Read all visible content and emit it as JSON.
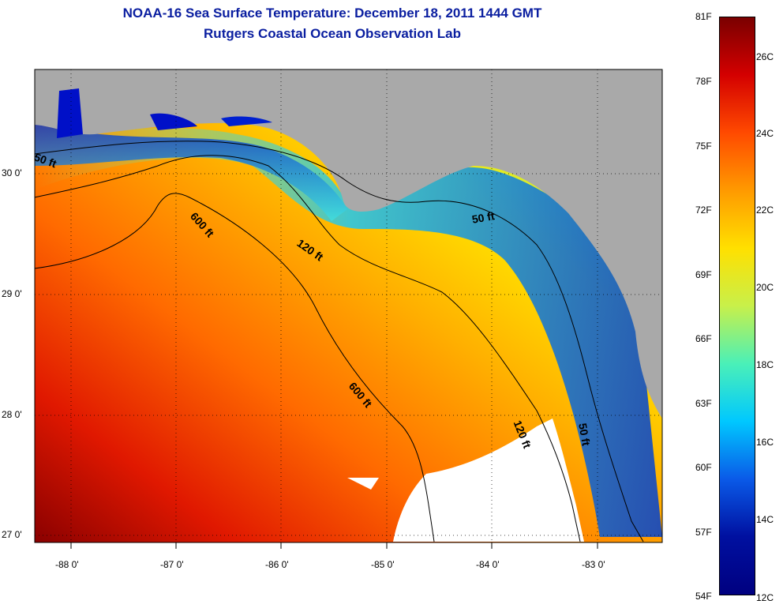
{
  "title": "NOAA-16 Sea Surface Temperature:  December 18, 2011 1444 GMT",
  "subtitle": "Rutgers Coastal Ocean Observation Lab",
  "y_labels": [
    "30 0'",
    "29 0'",
    "28 0'",
    "27 0'"
  ],
  "x_labels": [
    "-88 0'",
    "-87 0'",
    "-86 0'",
    "-85 0'",
    "-84 0'",
    "-83 0'"
  ],
  "colorbar": {
    "fahrenheit": [
      "81F",
      "78F",
      "75F",
      "72F",
      "69F",
      "66F",
      "63F",
      "60F",
      "57F",
      "54F"
    ],
    "celsius": [
      "26C",
      "24C",
      "22C",
      "20C",
      "18C",
      "16C",
      "14C",
      "12C"
    ],
    "colors": [
      "#7a0000",
      "#d40000",
      "#ff4a00",
      "#ff9a00",
      "#ffe000",
      "#c8f04a",
      "#4af0b8",
      "#00c8ff",
      "#0a5ae8",
      "#0010a0",
      "#000080"
    ]
  },
  "contours": [
    "50 ft",
    "600 ft",
    "120 ft",
    "50 ft",
    "600 ft",
    "120 ft",
    "50 ft"
  ],
  "colors": {
    "land": "#a9a9a9",
    "title": "#0a1ea0"
  }
}
